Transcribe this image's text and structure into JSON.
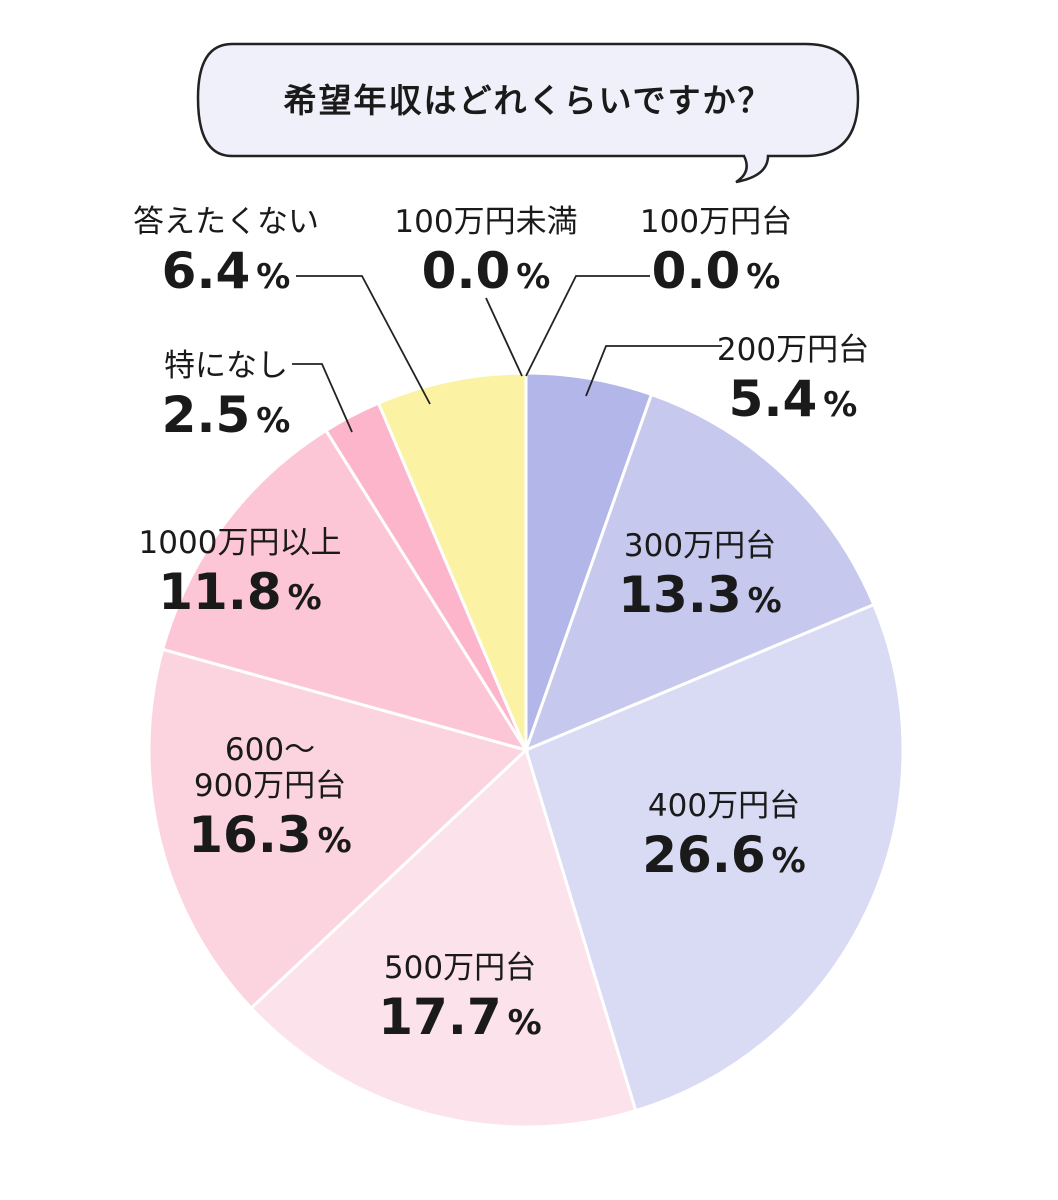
{
  "title": "希望年収はどれくらいですか？",
  "chart_data": {
    "type": "pie",
    "title": "希望年収はどれくらいですか？",
    "unit": "%",
    "slices": [
      {
        "label": "100万円未満",
        "value": 0.0,
        "value_text": "0.0",
        "color": "#b3b6e9"
      },
      {
        "label": "100万円台",
        "value": 0.0,
        "value_text": "0.0",
        "color": "#b3b6e9"
      },
      {
        "label": "200万円台",
        "value": 5.4,
        "value_text": "5.4",
        "color": "#b3b6e9"
      },
      {
        "label": "300万円台",
        "value": 13.3,
        "value_text": "13.3",
        "color": "#c6c8ee"
      },
      {
        "label": "400万円台",
        "value": 26.6,
        "value_text": "26.6",
        "color": "#d9daf3"
      },
      {
        "label": "500万円台",
        "value": 17.7,
        "value_text": "17.7",
        "color": "#fce2ea"
      },
      {
        "label": "600～\n900万円台",
        "value": 16.3,
        "value_text": "16.3",
        "color": "#fcd4e0"
      },
      {
        "label": "1000万円以上",
        "value": 11.8,
        "value_text": "11.8",
        "color": "#fdc6d6"
      },
      {
        "label": "特になし",
        "value": 2.5,
        "value_text": "2.5",
        "color": "#fcb5ca"
      },
      {
        "label": "答えたくない",
        "value": 6.4,
        "value_text": "6.4",
        "color": "#fbf3a3"
      }
    ]
  }
}
